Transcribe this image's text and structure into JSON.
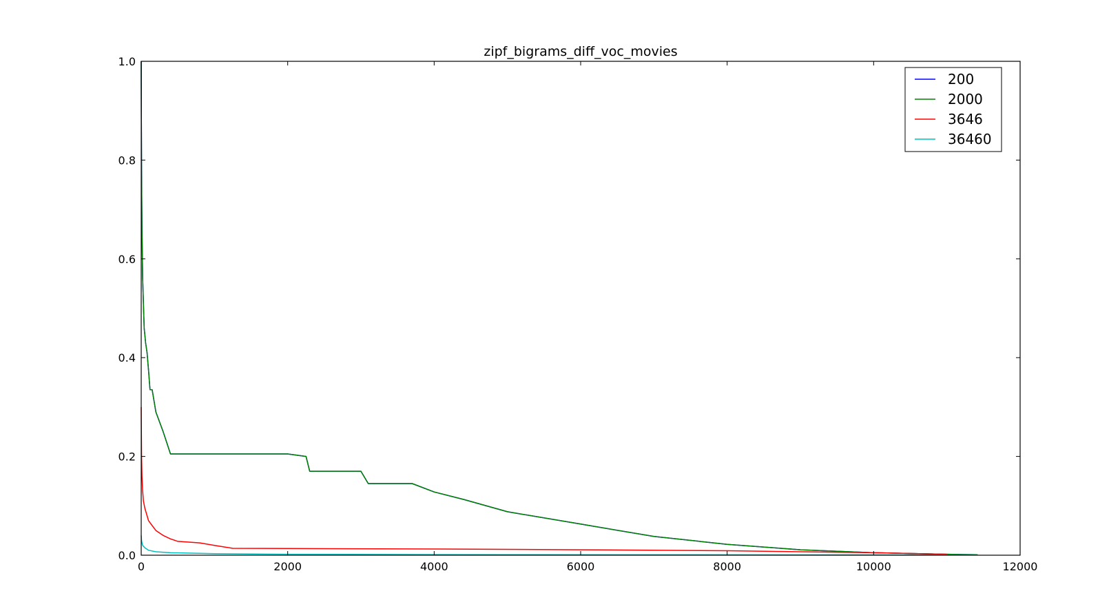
{
  "chart_data": {
    "type": "line",
    "title": "zipf_bigrams_diff_voc_movies",
    "xlabel": "",
    "ylabel": "",
    "xlim": [
      0,
      12000
    ],
    "ylim": [
      0,
      1.0
    ],
    "xticks": [
      "0",
      "2000",
      "4000",
      "6000",
      "8000",
      "10000",
      "12000"
    ],
    "yticks": [
      "0.0",
      "0.2",
      "0.4",
      "0.6",
      "0.8",
      "1.0"
    ],
    "grid": false,
    "legend_position": "top-right",
    "series": [
      {
        "name": "200",
        "color": "#0000ff",
        "x": [
          0,
          2,
          5,
          10,
          20,
          40,
          60,
          80,
          100,
          120,
          150,
          200,
          300,
          400,
          2000,
          2250,
          2300,
          3000,
          3100,
          3700,
          4000,
          4400,
          5000,
          6000,
          7000,
          8000,
          9000,
          10000,
          11000,
          11420
        ],
        "y": [
          1.0,
          0.9,
          0.78,
          0.66,
          0.56,
          0.46,
          0.43,
          0.41,
          0.375,
          0.335,
          0.335,
          0.29,
          0.25,
          0.205,
          0.205,
          0.2,
          0.17,
          0.17,
          0.145,
          0.145,
          0.128,
          0.113,
          0.088,
          0.063,
          0.038,
          0.022,
          0.011,
          0.005,
          0.002,
          0.001
        ]
      },
      {
        "name": "2000",
        "color": "#008000",
        "x": [
          0,
          2,
          5,
          10,
          20,
          40,
          60,
          80,
          100,
          120,
          150,
          200,
          300,
          400,
          2000,
          2250,
          2300,
          3000,
          3100,
          3700,
          4000,
          4400,
          5000,
          6000,
          7000,
          8000,
          9000,
          10000,
          11000,
          11420
        ],
        "y": [
          1.0,
          0.9,
          0.78,
          0.66,
          0.56,
          0.46,
          0.43,
          0.41,
          0.375,
          0.335,
          0.335,
          0.29,
          0.25,
          0.205,
          0.205,
          0.2,
          0.17,
          0.17,
          0.145,
          0.145,
          0.128,
          0.113,
          0.088,
          0.063,
          0.038,
          0.022,
          0.011,
          0.005,
          0.002,
          0.001
        ]
      },
      {
        "name": "3646",
        "color": "#ff0000",
        "x": [
          0,
          5,
          10,
          20,
          30,
          50,
          80,
          100,
          150,
          200,
          250,
          300,
          400,
          500,
          800,
          1000,
          1250,
          2000,
          4000,
          6000,
          8000,
          10000,
          11000
        ],
        "y": [
          0.3,
          0.2,
          0.16,
          0.13,
          0.11,
          0.095,
          0.08,
          0.07,
          0.06,
          0.05,
          0.045,
          0.04,
          0.033,
          0.028,
          0.025,
          0.02,
          0.014,
          0.0135,
          0.0125,
          0.011,
          0.009,
          0.005,
          0.002
        ]
      },
      {
        "name": "36460",
        "color": "#00bfbf",
        "x": [
          0,
          5,
          10,
          20,
          50,
          100,
          200,
          400,
          1000,
          2000,
          5000,
          11420
        ],
        "y": [
          0.04,
          0.03,
          0.025,
          0.02,
          0.015,
          0.01,
          0.007,
          0.005,
          0.003,
          0.002,
          0.001,
          0.0005
        ]
      }
    ]
  }
}
